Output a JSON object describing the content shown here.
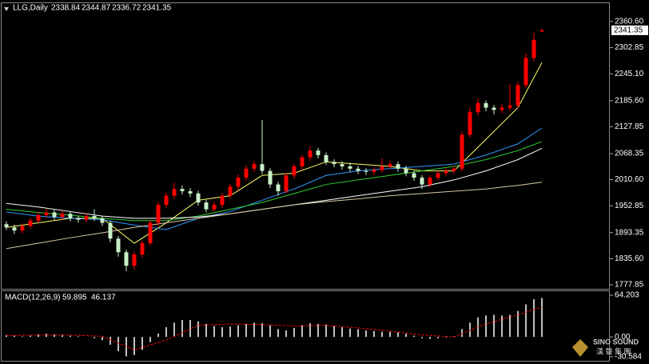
{
  "chart_data": [
    {
      "type": "candlestick",
      "title": "LLG,Daily",
      "open": [
        1912,
        1905,
        1898,
        1908,
        1920,
        1932,
        1938,
        1928,
        1935,
        1925,
        1922,
        1930,
        1925,
        1915,
        1880,
        1850,
        1820,
        1845,
        1870,
        1915,
        1955,
        1975,
        1990,
        1985,
        1980,
        1960,
        1945,
        1955,
        1975,
        1995,
        2015,
        2035,
        2045,
        2030,
        2000,
        1985,
        2020,
        2040,
        2060,
        2075,
        2065,
        2050,
        2045,
        2040,
        2035,
        2030,
        2028,
        2032,
        2040,
        2045,
        2035,
        2025,
        2015,
        2000,
        2015,
        2025,
        2030,
        2035,
        2110,
        2160,
        2180,
        2170,
        2165,
        2170,
        2175,
        2220,
        2280,
        2338.84
      ],
      "high": [
        1918,
        1911,
        1914,
        1926,
        1940,
        1945,
        1944,
        1942,
        1940,
        1931,
        1937,
        1945,
        1931,
        1920,
        1886,
        1856,
        1851,
        1876,
        1921,
        1962,
        1982,
        2003,
        1998,
        1992,
        1986,
        1966,
        1962,
        1981,
        2002,
        2022,
        2042,
        2052,
        2143,
        2036,
        2006,
        2026,
        2046,
        2066,
        2085,
        2081,
        2071,
        2056,
        2052,
        2048,
        2041,
        2036,
        2038,
        2058,
        2052,
        2051,
        2041,
        2031,
        2021,
        2021,
        2031,
        2036,
        2041,
        2118,
        2170,
        2190,
        2186,
        2176,
        2178,
        2222,
        2228,
        2290,
        2335,
        2344.87
      ],
      "low": [
        1899,
        1890,
        1892,
        1902,
        1915,
        1926,
        1921,
        1922,
        1918,
        1915,
        1916,
        1919,
        1908,
        1872,
        1840,
        1808,
        1812,
        1838,
        1864,
        1908,
        1948,
        1968,
        1978,
        1972,
        1953,
        1938,
        1939,
        1949,
        1968,
        1988,
        2008,
        2028,
        2023,
        1992,
        1975,
        1979,
        2013,
        2033,
        2053,
        2058,
        2043,
        2038,
        2033,
        2028,
        2023,
        2021,
        2022,
        2026,
        2034,
        2028,
        2018,
        2008,
        1990,
        1994,
        2009,
        2019,
        2024,
        2029,
        2104,
        2152,
        2162,
        2155,
        2158,
        2163,
        2168,
        2214,
        2272,
        2336.72
      ],
      "close": [
        1905,
        1898,
        1908,
        1920,
        1932,
        1938,
        1928,
        1935,
        1925,
        1922,
        1930,
        1925,
        1915,
        1880,
        1850,
        1820,
        1845,
        1870,
        1915,
        1955,
        1975,
        1990,
        1985,
        1980,
        1960,
        1945,
        1955,
        1975,
        1995,
        2015,
        2035,
        2045,
        2030,
        2000,
        1985,
        2020,
        2040,
        2060,
        2075,
        2065,
        2050,
        2045,
        2040,
        2035,
        2030,
        2028,
        2032,
        2040,
        2045,
        2035,
        2025,
        2015,
        2000,
        2015,
        2025,
        2030,
        2035,
        2110,
        2160,
        2180,
        2170,
        2165,
        2170,
        2175,
        2220,
        2280,
        2320,
        2341.35
      ],
      "up_color": "#ff0000",
      "down_color": "#c8f0c8",
      "line_x": [
        0,
        4,
        8,
        12,
        16,
        20,
        24,
        28,
        32,
        36,
        40,
        44,
        48,
        52,
        56,
        60,
        64,
        67
      ],
      "lines": [
        {
          "color": "#ffff66",
          "values": [
            1905,
            1915,
            1925,
            1925,
            1870,
            1915,
            1965,
            1975,
            2020,
            2025,
            2050,
            2045,
            2040,
            2030,
            2030,
            2100,
            2170,
            2270
          ]
        },
        {
          "color": "#3399ff",
          "values": [
            1939,
            1930,
            1925,
            1922,
            1910,
            1900,
            1925,
            1940,
            1965,
            1990,
            2020,
            2030,
            2035,
            2040,
            2045,
            2065,
            2090,
            2125
          ]
        },
        {
          "color": "#33cc33",
          "values": [
            1945,
            1938,
            1932,
            1925,
            1920,
            1920,
            1930,
            1945,
            1960,
            1980,
            2000,
            2010,
            2020,
            2030,
            2040,
            2055,
            2075,
            2095
          ]
        },
        {
          "color": "#ffffff",
          "values": [
            1958,
            1950,
            1940,
            1930,
            1925,
            1925,
            1928,
            1935,
            1945,
            1955,
            1965,
            1975,
            1985,
            1995,
            2010,
            2030,
            2055,
            2080
          ]
        },
        {
          "color": "#d8c8a8",
          "values": [
            1858,
            1870,
            1882,
            1893,
            1905,
            1915,
            1925,
            1935,
            1945,
            1955,
            1962,
            1968,
            1975,
            1980,
            1985,
            1990,
            1998,
            2005
          ]
        }
      ],
      "ylim": [
        1767.2,
        2401.3
      ],
      "yticks": [
        {
          "value": 2360.6,
          "label": "2360.60"
        },
        2302.85,
        {
          "value": 2245.1,
          "label": "2245.10"
        },
        {
          "value": 2185.6,
          "label": "2185.60"
        },
        2127.85,
        2068.35,
        {
          "value": 2010.6,
          "label": "2010.60"
        },
        1952.85,
        1893.35,
        {
          "value": 1835.6,
          "label": "1835.60"
        },
        1777.85
      ]
    },
    {
      "type": "bar",
      "title": "MACD(12,26,9)",
      "color": "#c0c0c0",
      "values": [
        3,
        2,
        1,
        2,
        4,
        5,
        4,
        3,
        2,
        1,
        0,
        -2,
        -5,
        -12,
        -22,
        -30,
        -28,
        -20,
        -8,
        5,
        15,
        22,
        26,
        26,
        24,
        20,
        17,
        15,
        16,
        18,
        20,
        22,
        21,
        18,
        12,
        10,
        14,
        18,
        21,
        20,
        19,
        17,
        15,
        13,
        12,
        10,
        9,
        8,
        8,
        7,
        5,
        2,
        -2,
        -3,
        -2,
        -1,
        1,
        12,
        22,
        30,
        33,
        34,
        33,
        34,
        40,
        50,
        58,
        59.895
      ],
      "signal": {
        "color": "#ff0000",
        "x": [
          0,
          4,
          8,
          12,
          16,
          20,
          24,
          28,
          32,
          36,
          40,
          44,
          48,
          52,
          56,
          60,
          64,
          67
        ],
        "values": [
          2,
          3,
          3,
          1,
          -20,
          -5,
          18,
          20,
          19,
          17,
          18,
          14,
          9,
          3,
          0,
          20,
          34,
          46.137
        ]
      },
      "ylim": [
        -38,
        70.4
      ],
      "yticks": [
        64.203,
        {
          "value": 0,
          "label": "0.00"
        },
        -30.584
      ]
    }
  ],
  "watermark": {
    "brand": "SINO SOUND",
    "chinese": "漢 聲 集 團"
  }
}
